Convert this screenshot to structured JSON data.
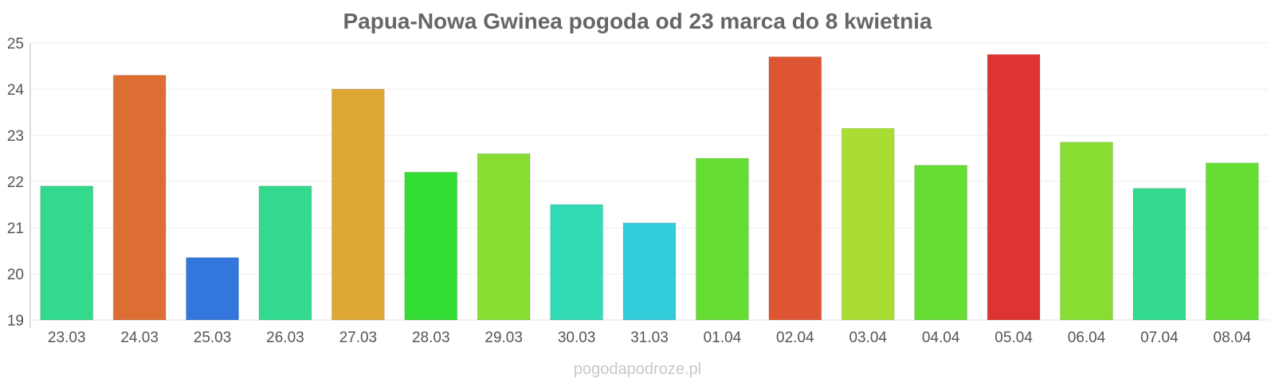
{
  "chart_data": {
    "type": "bar",
    "title": "Papua-Nowa Gwinea pogoda od 23 marca do 8 kwietnia",
    "xlabel": "",
    "ylabel": "",
    "ylim": [
      19,
      25
    ],
    "yticks": [
      "19",
      "20",
      "21",
      "22",
      "23",
      "24",
      "25"
    ],
    "grid": true,
    "categories": [
      "23.03",
      "24.03",
      "25.03",
      "26.03",
      "27.03",
      "28.03",
      "29.03",
      "30.03",
      "31.03",
      "01.04",
      "02.04",
      "03.04",
      "04.04",
      "05.04",
      "06.04",
      "07.04",
      "08.04"
    ],
    "values": [
      21.9,
      24.3,
      20.35,
      21.9,
      24.0,
      22.2,
      22.6,
      21.5,
      21.1,
      22.5,
      24.7,
      23.15,
      22.35,
      24.75,
      22.85,
      21.85,
      22.4
    ],
    "colors": [
      "#33d98c",
      "#dd6e33",
      "#3377dd",
      "#33d98c",
      "#dca833",
      "#33dd33",
      "#88dd33",
      "#33dbb6",
      "#33ccdb",
      "#66dd33",
      "#dd5533",
      "#aadd33",
      "#66dd33",
      "#dd3333",
      "#88dd33",
      "#33d98c",
      "#66dd33"
    ]
  },
  "watermark": "pogodapodroze.pl"
}
